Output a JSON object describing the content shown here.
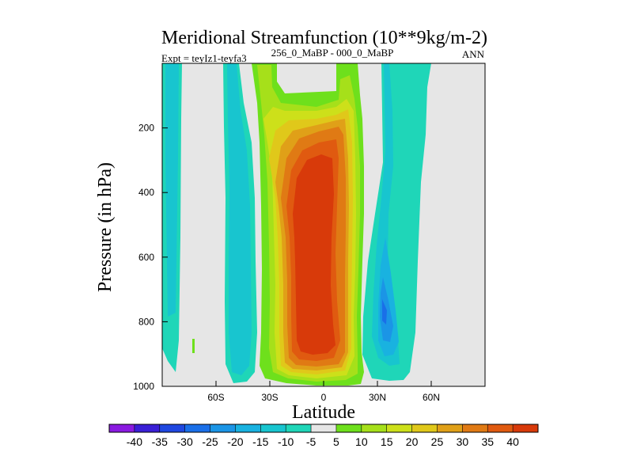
{
  "chart_data": {
    "type": "contour",
    "title": "Meridional Streamfunction (10**9kg/m-2)",
    "subtitle_left": "Expt = teyIz1-teyfa3",
    "subtitle_center": "256_0_MaBP - 000_0_MaBP",
    "subtitle_right": "ANN",
    "xlabel": "Latitude",
    "ylabel": "Pressure (in hPa)",
    "xlim": [
      -90,
      90
    ],
    "ylim": [
      1000,
      0
    ],
    "x_ticks": [
      {
        "value": -60,
        "label": "60S"
      },
      {
        "value": -30,
        "label": "30S"
      },
      {
        "value": 0,
        "label": "0"
      },
      {
        "value": 30,
        "label": "30N"
      },
      {
        "value": 60,
        "label": "60N"
      }
    ],
    "y_ticks": [
      {
        "value": 200,
        "label": "200"
      },
      {
        "value": 400,
        "label": "400"
      },
      {
        "value": 600,
        "label": "600"
      },
      {
        "value": 800,
        "label": "800"
      },
      {
        "value": 1000,
        "label": "1000"
      }
    ],
    "colorbar": {
      "labels": [
        "-40",
        "-35",
        "-30",
        "-25",
        "-20",
        "-15",
        "-10",
        "-5",
        "5",
        "10",
        "15",
        "20",
        "25",
        "30",
        "35",
        "40"
      ],
      "colors": [
        "#8a1ae0",
        "#3a1fd6",
        "#1f47e0",
        "#1a6fe8",
        "#1b95e6",
        "#19b2e0",
        "#18c5cf",
        "#1fd6b8",
        "#e6e6e6",
        "#6ee01c",
        "#a6e01a",
        "#cde01a",
        "#e0c81a",
        "#e0a018",
        "#e07a14",
        "#e05a10",
        "#d83a0a"
      ]
    },
    "features": [
      {
        "name": "central positive cell (Hadley)",
        "center_lat": -10,
        "center_p": 550,
        "max_value": 40
      },
      {
        "name": "northern negative cell",
        "center_lat": 33,
        "center_p": 780,
        "min_value": -30
      },
      {
        "name": "southern negative band",
        "center_lat": -50,
        "center_p": 600,
        "min_value": -10
      },
      {
        "name": "south polar negative band",
        "center_lat": -81,
        "center_p": 500,
        "min_value": -10
      }
    ]
  }
}
